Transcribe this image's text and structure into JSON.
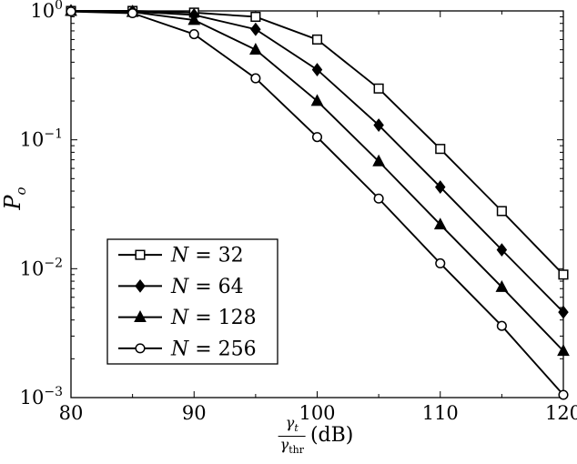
{
  "figure": {
    "background": "#ffffff",
    "axis_color": "#000000",
    "line_color": "#000000"
  },
  "chart_data": {
    "type": "line",
    "title": "",
    "xlabel": {
      "num_base": "γ",
      "num_sub": "t",
      "den_base": "γ",
      "den_sub": "thr",
      "unit": "(dB)"
    },
    "ylabel": {
      "base": "P",
      "sub": "o"
    },
    "xlim": [
      80,
      120
    ],
    "ylim_exp": [
      -3,
      0
    ],
    "x_ticks": [
      80,
      90,
      100,
      110,
      120
    ],
    "x_minor_step": 5,
    "y_tick_exponents": [
      0,
      -1,
      -2,
      -3
    ],
    "grid": false,
    "x": [
      80,
      85,
      90,
      95,
      100,
      105,
      110,
      115,
      120
    ],
    "series": [
      {
        "name": "N = 32",
        "marker": "square",
        "fill": "hollow",
        "values": [
          1.0,
          1.0,
          0.97,
          0.9,
          0.6,
          0.25,
          0.085,
          0.028,
          0.009
        ]
      },
      {
        "name": "N = 64",
        "marker": "diamond",
        "fill": "solid",
        "values": [
          1.0,
          0.99,
          0.93,
          0.72,
          0.35,
          0.13,
          0.043,
          0.014,
          0.0046
        ]
      },
      {
        "name": "N = 128",
        "marker": "triangle",
        "fill": "solid",
        "values": [
          1.0,
          0.98,
          0.85,
          0.5,
          0.2,
          0.068,
          0.022,
          0.0072,
          0.0023
        ]
      },
      {
        "name": "N = 256",
        "marker": "circle",
        "fill": "hollow",
        "values": [
          0.99,
          0.96,
          0.66,
          0.3,
          0.105,
          0.035,
          0.011,
          0.0036,
          0.00105
        ]
      }
    ],
    "legend": {
      "position": "bottom-left"
    }
  }
}
